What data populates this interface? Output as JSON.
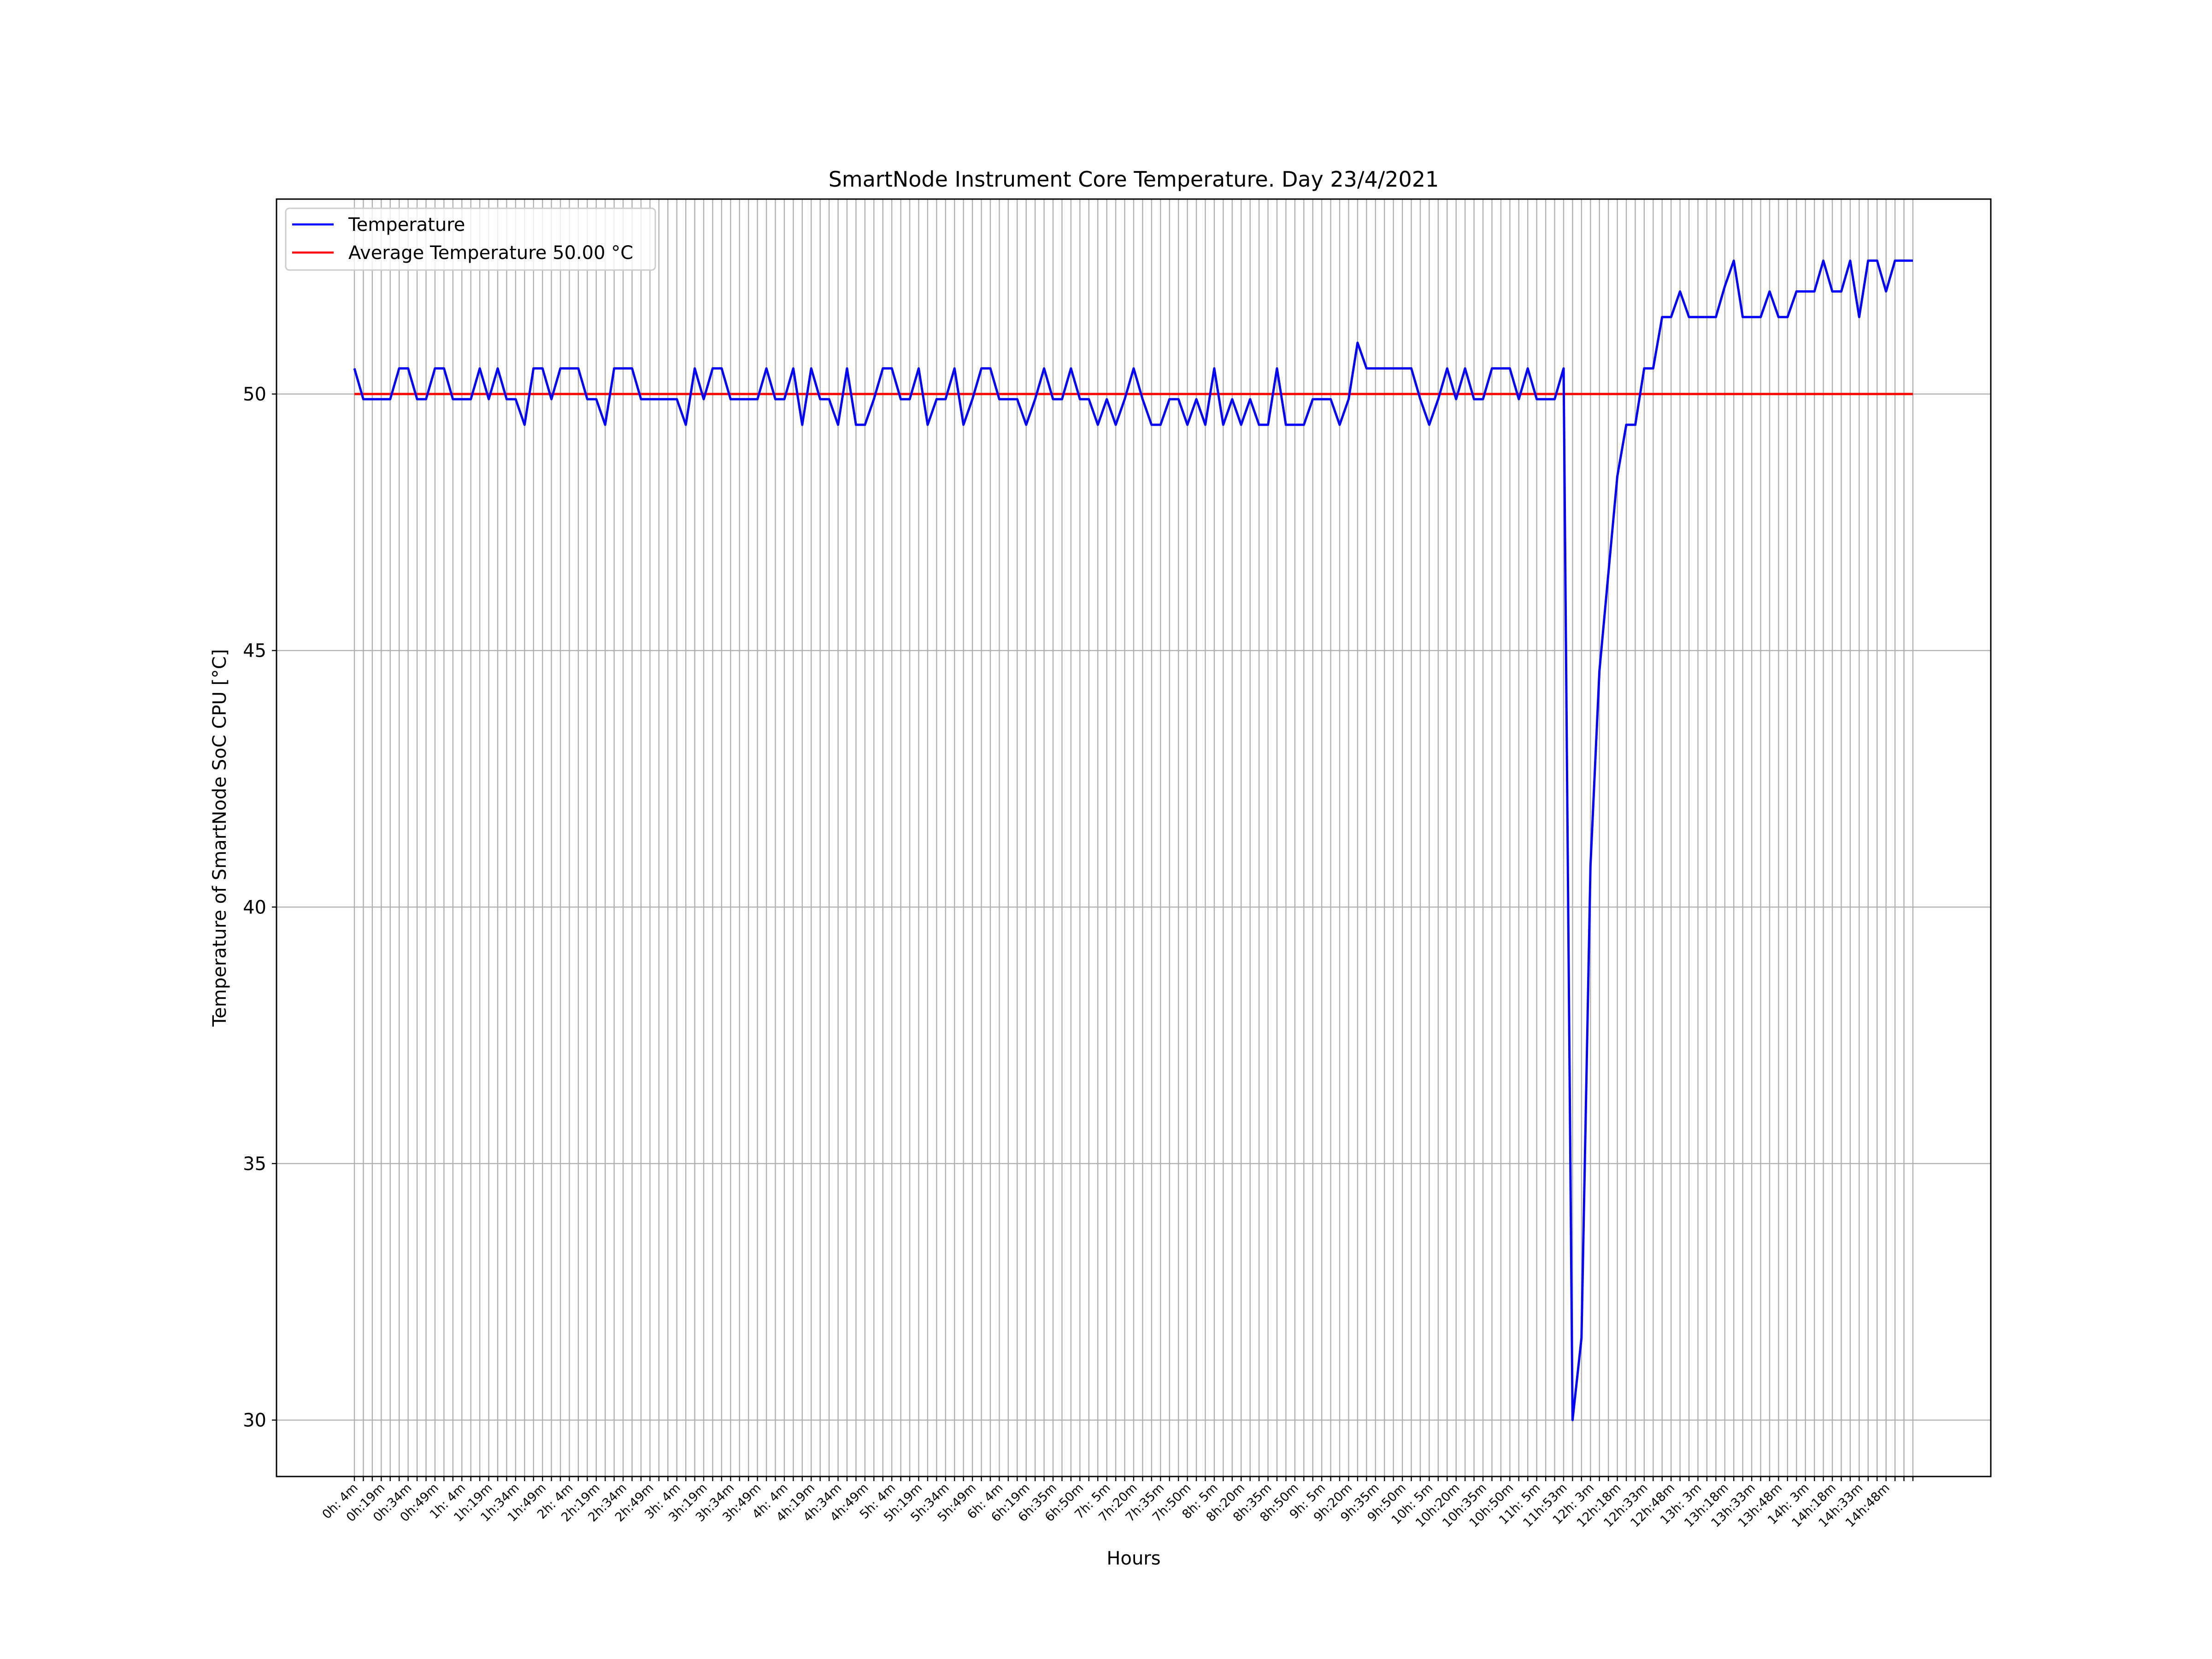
{
  "chart_data": {
    "type": "line",
    "title": "SmartNode Instrument Core Temperature. Day 23/4/2021",
    "xlabel": "Hours",
    "ylabel": "Temperature of SmartNode SoC CPU [°C]",
    "ylim": [
      28.9,
      53.8
    ],
    "y_ticks": [
      30,
      35,
      40,
      45,
      50
    ],
    "grid": "on",
    "legend_position": "top-left",
    "x_tick_labels": [
      "0h: 4m",
      "0h:19m",
      "0h:34m",
      "0h:49m",
      "1h: 4m",
      "1h:19m",
      "1h:34m",
      "1h:49m",
      "2h: 4m",
      "2h:19m",
      "2h:34m",
      "2h:49m",
      "3h: 4m",
      "3h:19m",
      "3h:34m",
      "3h:49m",
      "4h: 4m",
      "4h:19m",
      "4h:34m",
      "4h:49m",
      "5h: 4m",
      "5h:19m",
      "5h:34m",
      "5h:49m",
      "6h: 4m",
      "6h:19m",
      "6h:35m",
      "6h:50m",
      "7h: 5m",
      "7h:20m",
      "7h:35m",
      "7h:50m",
      "8h: 5m",
      "8h:20m",
      "8h:35m",
      "8h:50m",
      "9h: 5m",
      "9h:20m",
      "9h:35m",
      "9h:50m",
      "10h: 5m",
      "10h:20m",
      "10h:35m",
      "10h:50m",
      "11h: 5m",
      "11h:53m",
      "12h: 3m",
      "12h:18m",
      "12h:33m",
      "12h:48m",
      "13h: 3m",
      "13h:18m",
      "13h:33m",
      "13h:48m",
      "14h: 3m",
      "14h:18m",
      "14h:33m",
      "14h:48m"
    ],
    "series": [
      {
        "name": "Temperature",
        "color": "#0000ff",
        "values": [
          50.5,
          49.9,
          49.9,
          49.9,
          49.9,
          50.5,
          50.5,
          49.9,
          49.9,
          50.5,
          50.5,
          49.9,
          49.9,
          49.9,
          50.5,
          49.9,
          50.5,
          49.9,
          49.9,
          49.4,
          50.5,
          50.5,
          49.9,
          50.5,
          50.5,
          50.5,
          49.9,
          49.9,
          49.4,
          50.5,
          50.5,
          50.5,
          49.9,
          49.9,
          49.9,
          49.9,
          49.9,
          49.4,
          50.5,
          49.9,
          50.5,
          50.5,
          49.9,
          49.9,
          49.9,
          49.9,
          50.5,
          49.9,
          49.9,
          50.5,
          49.4,
          50.5,
          49.9,
          49.9,
          49.4,
          50.5,
          49.4,
          49.4,
          49.9,
          50.5,
          50.5,
          49.9,
          49.9,
          50.5,
          49.4,
          49.9,
          49.9,
          50.5,
          49.4,
          49.9,
          50.5,
          50.5,
          49.9,
          49.9,
          49.9,
          49.4,
          49.9,
          50.5,
          49.9,
          49.9,
          50.5,
          49.9,
          49.9,
          49.4,
          49.9,
          49.4,
          49.9,
          50.5,
          49.9,
          49.4,
          49.4,
          49.9,
          49.9,
          49.4,
          49.9,
          49.4,
          50.5,
          49.4,
          49.9,
          49.4,
          49.9,
          49.4,
          49.4,
          50.5,
          49.4,
          49.4,
          49.4,
          49.9,
          49.9,
          49.9,
          49.4,
          49.9,
          51.0,
          50.5,
          50.5,
          50.5,
          50.5,
          50.5,
          50.5,
          49.9,
          49.4,
          49.9,
          50.5,
          49.9,
          50.5,
          49.9,
          49.9,
          50.5,
          50.5,
          50.5,
          49.9,
          50.5,
          49.9,
          49.9,
          49.9,
          50.5,
          30.0,
          31.6,
          40.8,
          44.6,
          46.5,
          48.4,
          49.4,
          49.4,
          50.5,
          50.5,
          51.5,
          51.5,
          52.0,
          51.5,
          51.5,
          51.5,
          51.5,
          52.1,
          52.6,
          51.5,
          51.5,
          51.5,
          52.0,
          51.5,
          51.5,
          52.0,
          52.0,
          52.0,
          52.6,
          52.0,
          52.0,
          52.6,
          51.5,
          52.6,
          52.6,
          52.0,
          52.6,
          52.6,
          52.6
        ]
      },
      {
        "name": "Average Temperature 50.00 °C",
        "color": "#ff0000",
        "values": [
          50.0,
          50.0
        ]
      }
    ]
  }
}
